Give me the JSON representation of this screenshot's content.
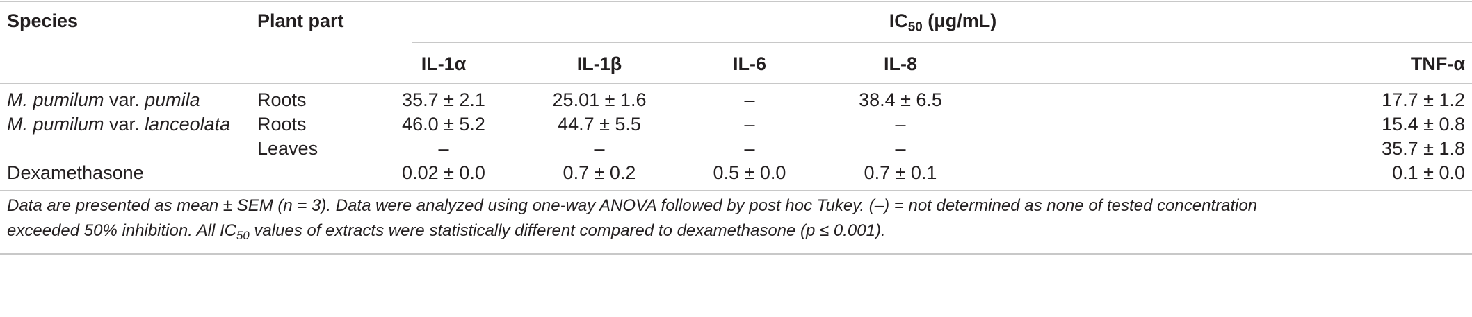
{
  "table": {
    "header": {
      "species": "Species",
      "plant_part": "Plant part",
      "ic50_prefix": "IC",
      "ic50_sub": "50",
      "ic50_unit": " (μg/mL)",
      "columns": [
        "IL-1α",
        "IL-1β",
        "IL-6",
        "IL-8",
        "TNF-α"
      ]
    },
    "rows": [
      {
        "species_parts": [
          {
            "text": "M. pumilum",
            "italic": true
          },
          {
            "text": " var. ",
            "italic": false
          },
          {
            "text": "pumila",
            "italic": true
          }
        ],
        "plant_part": "Roots",
        "values": [
          "35.7 ± 2.1",
          "25.01 ± 1.6",
          "–",
          "38.4 ± 6.5",
          "17.7 ± 1.2"
        ]
      },
      {
        "species_parts": [
          {
            "text": "M. pumilum",
            "italic": true
          },
          {
            "text": " var. ",
            "italic": false
          },
          {
            "text": "lanceolata",
            "italic": true
          }
        ],
        "plant_part": "Roots",
        "values": [
          "46.0 ± 5.2",
          "44.7 ± 5.5",
          "–",
          "–",
          "15.4 ± 0.8"
        ]
      },
      {
        "species_parts": [],
        "plant_part": "Leaves",
        "values": [
          "–",
          "–",
          "–",
          "–",
          "35.7 ± 1.8"
        ]
      },
      {
        "species_parts": [
          {
            "text": "Dexamethasone",
            "italic": false
          }
        ],
        "plant_part": "",
        "values": [
          "0.02 ± 0.0",
          "0.7 ± 0.2",
          "0.5 ± 0.0",
          "0.7 ± 0.1",
          "0.1 ± 0.0"
        ]
      }
    ]
  },
  "footnote": {
    "line1": "Data are presented as mean ± SEM (n = 3). Data were analyzed using one-way ANOVA followed by post hoc Tukey. (–) = not determined as none of tested concentration",
    "line2_before": "exceeded 50% inhibition. All IC",
    "line2_sub": "50",
    "line2_after": " values of extracts were statistically different compared to dexamethasone (p ≤ 0.001)."
  }
}
